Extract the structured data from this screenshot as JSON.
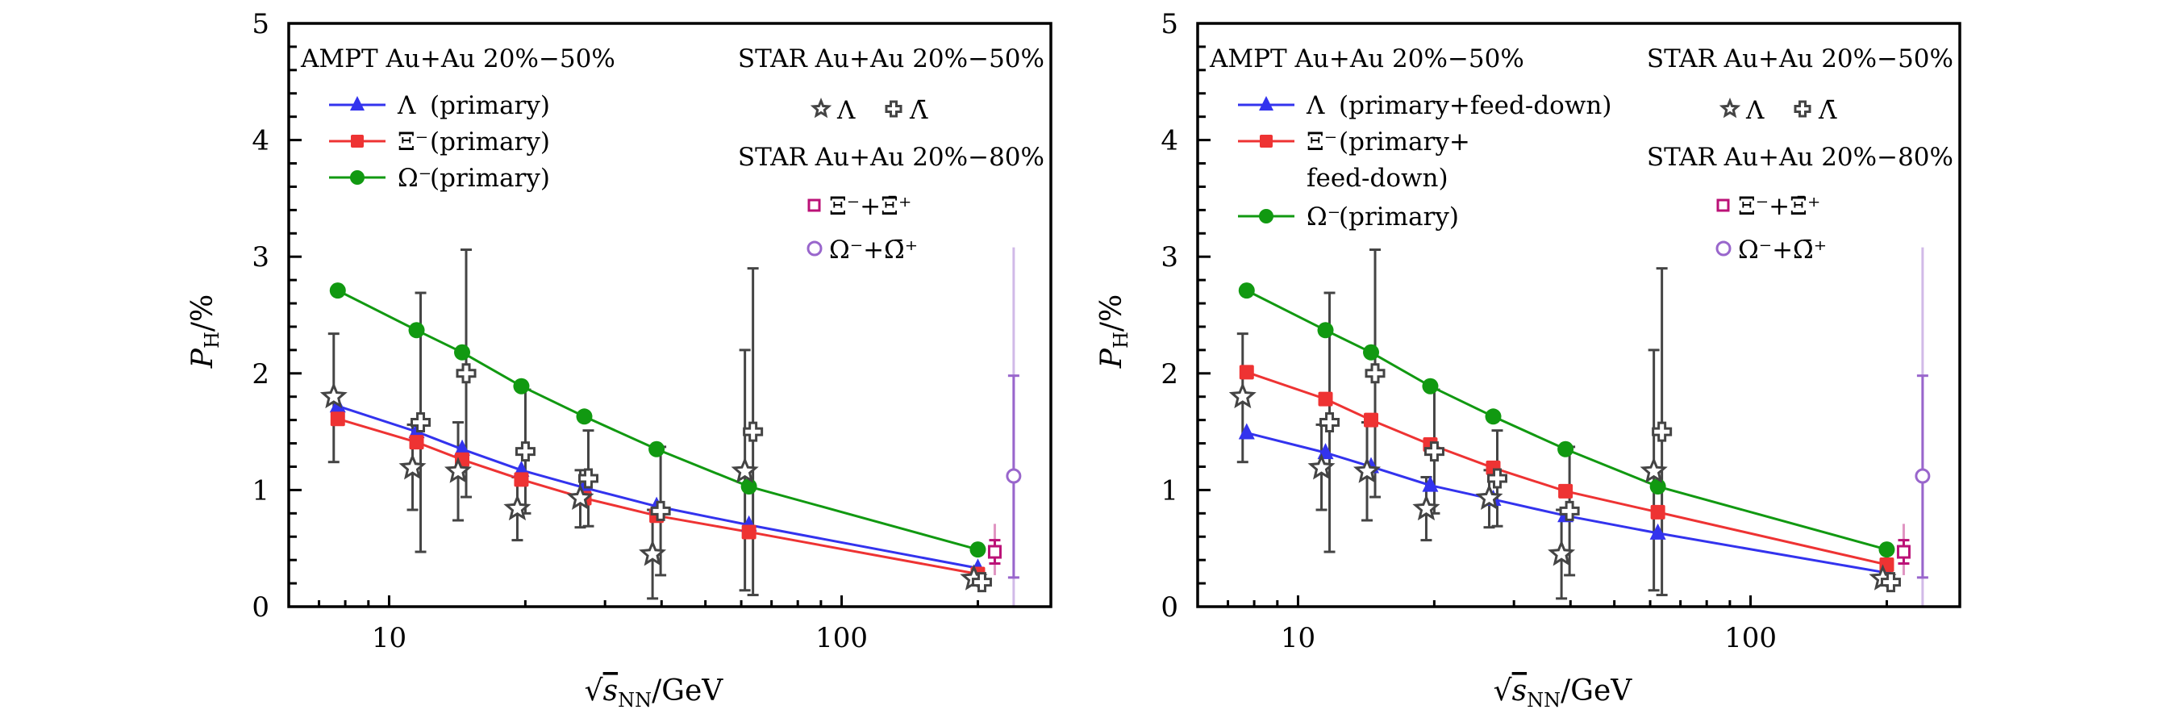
{
  "chart_data": [
    {
      "type": "line",
      "panel": "left",
      "xlabel": "√s_NN/GeV",
      "ylabel": "P_H/%",
      "xscale": "log",
      "xlim": [
        6.0,
        290
      ],
      "ylim": [
        0,
        5
      ],
      "xticks": [
        10,
        100
      ],
      "xtick_labels": [
        "10",
        "100"
      ],
      "yticks": [
        0,
        1,
        2,
        3,
        4,
        5
      ],
      "ytick_labels": [
        "0",
        "1",
        "2",
        "3",
        "4",
        "5"
      ],
      "legend_title_model": "AMPT Au+Au 20%−50%",
      "legend_title_star1": "STAR Au+Au 20%−50%",
      "legend_title_star2": "STAR Au+Au 20%−80%",
      "x": [
        7.7,
        11.5,
        14.5,
        19.6,
        27,
        39,
        62.4,
        200
      ],
      "series": [
        {
          "name": "Λ (primary)",
          "label_main": "Λ",
          "label_rest": " (primary)",
          "color": "#3333ee",
          "marker": "triangle",
          "values": [
            1.72,
            1.5,
            1.35,
            1.17,
            1.02,
            0.86,
            0.7,
            0.33
          ]
        },
        {
          "name": "Ξ⁻ (primary)",
          "label_main": "Ξ⁻",
          "label_rest": " (primary)",
          "color": "#ee3333",
          "marker": "square",
          "values": [
            1.61,
            1.41,
            1.26,
            1.09,
            0.93,
            0.78,
            0.64,
            0.28
          ]
        },
        {
          "name": "Ω⁻ (primary)",
          "label_main": "Ω⁻",
          "label_rest": " (primary)",
          "color": "#119911",
          "marker": "circle",
          "values": [
            2.71,
            2.37,
            2.18,
            1.89,
            1.63,
            1.35,
            1.03,
            0.49
          ]
        }
      ],
      "star_lambda": {
        "name": "Λ",
        "marker": "star",
        "color": "#444444",
        "x": [
          7.7,
          11.5,
          14.5,
          19.6,
          27,
          39,
          62.4,
          200
        ],
        "values": [
          1.8,
          1.19,
          1.16,
          0.84,
          0.93,
          0.45,
          1.16,
          0.24
        ],
        "err_low": [
          1.24,
          0.83,
          0.74,
          0.57,
          0.68,
          0.07,
          0.14,
          0.2
        ],
        "err_high": [
          2.34,
          1.56,
          1.58,
          1.11,
          1.17,
          0.83,
          2.2,
          0.28
        ]
      },
      "star_antilambda": {
        "name": "Λ̄",
        "marker": "cross",
        "color": "#444444",
        "x": [
          11.5,
          14.5,
          19.6,
          27,
          39,
          62.4,
          200
        ],
        "values": [
          1.58,
          2.0,
          1.33,
          1.1,
          0.82,
          1.5,
          0.21
        ],
        "err_low": [
          0.47,
          0.94,
          0.8,
          0.69,
          0.27,
          0.1,
          0.17
        ],
        "err_high": [
          2.69,
          3.06,
          1.86,
          1.51,
          1.37,
          2.9,
          0.25
        ]
      },
      "star_xi": {
        "name": "Ξ⁻+Ξ̄⁺",
        "marker": "open-square",
        "color": "#bb1177",
        "x": 218,
        "value": 0.47,
        "stat": [
          0.37,
          0.57
        ],
        "sys": [
          0.27,
          0.71
        ]
      },
      "star_omega": {
        "name": "Ω⁻+Ω̄⁺",
        "marker": "open-circle",
        "color": "#9966cc",
        "x": 240,
        "value": 1.12,
        "stat": [
          0.25,
          1.98
        ],
        "sys": [
          0.0,
          3.08
        ]
      }
    },
    {
      "type": "line",
      "panel": "right",
      "xlabel": "√s_NN/GeV",
      "ylabel": "P_H/%",
      "xscale": "log",
      "xlim": [
        6.0,
        290
      ],
      "ylim": [
        0,
        5
      ],
      "xticks": [
        10,
        100
      ],
      "xtick_labels": [
        "10",
        "100"
      ],
      "yticks": [
        0,
        1,
        2,
        3,
        4,
        5
      ],
      "ytick_labels": [
        "0",
        "1",
        "2",
        "3",
        "4",
        "5"
      ],
      "legend_title_model": "AMPT Au+Au 20%−50%",
      "legend_title_star1": "STAR Au+Au 20%−50%",
      "legend_title_star2": "STAR Au+Au 20%−80%",
      "x": [
        7.7,
        11.5,
        14.5,
        19.6,
        27,
        39,
        62.4,
        200
      ],
      "series": [
        {
          "name": "Λ (primary+feed-down)",
          "label_main": "Λ",
          "label_rest": " (primary+feed-down)",
          "color": "#3333ee",
          "marker": "triangle",
          "values": [
            1.49,
            1.32,
            1.2,
            1.04,
            0.92,
            0.78,
            0.63,
            0.29
          ]
        },
        {
          "name": "Ξ⁻ (primary+feed-down)",
          "label_main": "Ξ⁻",
          "label_rest": " (primary+",
          "label_rest2": "feed-down)",
          "color": "#ee3333",
          "marker": "square",
          "values": [
            2.01,
            1.78,
            1.6,
            1.39,
            1.19,
            0.99,
            0.81,
            0.36
          ]
        },
        {
          "name": "Ω⁻ (primary)",
          "label_main": "Ω⁻",
          "label_rest": " (primary)",
          "color": "#119911",
          "marker": "circle",
          "values": [
            2.71,
            2.37,
            2.18,
            1.89,
            1.63,
            1.35,
            1.03,
            0.49
          ]
        }
      ],
      "star_lambda": {
        "name": "Λ",
        "marker": "star",
        "color": "#444444",
        "x": [
          7.7,
          11.5,
          14.5,
          19.6,
          27,
          39,
          62.4,
          200
        ],
        "values": [
          1.8,
          1.19,
          1.16,
          0.84,
          0.93,
          0.45,
          1.16,
          0.24
        ],
        "err_low": [
          1.24,
          0.83,
          0.74,
          0.57,
          0.68,
          0.07,
          0.14,
          0.2
        ],
        "err_high": [
          2.34,
          1.56,
          1.58,
          1.11,
          1.17,
          0.83,
          2.2,
          0.28
        ]
      },
      "star_antilambda": {
        "name": "Λ̄",
        "marker": "cross",
        "color": "#444444",
        "x": [
          11.5,
          14.5,
          19.6,
          27,
          39,
          62.4,
          200
        ],
        "values": [
          1.58,
          2.0,
          1.33,
          1.1,
          0.82,
          1.5,
          0.21
        ],
        "err_low": [
          0.47,
          0.94,
          0.8,
          0.69,
          0.27,
          0.1,
          0.17
        ],
        "err_high": [
          2.69,
          3.06,
          1.86,
          1.51,
          1.37,
          2.9,
          0.25
        ]
      },
      "star_xi": {
        "name": "Ξ⁻+Ξ̄⁺",
        "marker": "open-square",
        "color": "#bb1177",
        "x": 218,
        "value": 0.47,
        "stat": [
          0.37,
          0.57
        ],
        "sys": [
          0.27,
          0.71
        ]
      },
      "star_omega": {
        "name": "Ω⁻+Ω̄⁺",
        "marker": "open-circle",
        "color": "#9966cc",
        "x": 240,
        "value": 1.12,
        "stat": [
          0.25,
          1.98
        ],
        "sys": [
          0.0,
          3.08
        ]
      }
    }
  ],
  "labels": {
    "xlabel_sqrt": "√",
    "xlabel_s": "s",
    "xlabel_sub": "NN",
    "xlabel_unit": "/GeV",
    "ylabel_p": "P",
    "ylabel_sub": "H",
    "ylabel_unit": "/%",
    "star_lambda_label": "Λ",
    "star_antilambda_label": "Λ̄",
    "star_xi_label": "Ξ⁻+Ξ̄⁺",
    "star_omega_label": "Ω⁻+Ω̄⁺"
  }
}
